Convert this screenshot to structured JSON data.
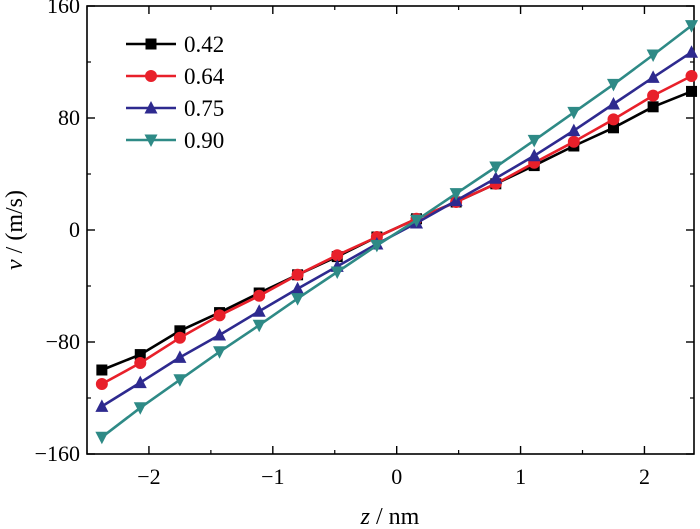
{
  "chart_data": {
    "type": "line",
    "title": "",
    "xlabel_var": "z",
    "xlabel_unit": " / nm",
    "ylabel_var": "v",
    "ylabel_unit": " / (m/s)",
    "xlim": [
      -2.5,
      2.4
    ],
    "ylim": [
      -160,
      160
    ],
    "xticks": [
      -2,
      -1,
      0,
      1,
      2
    ],
    "xtick_labels": [
      "−2",
      "−1",
      "0",
      "1",
      "2"
    ],
    "yticks": [
      -160,
      -80,
      0,
      80,
      160
    ],
    "ytick_labels": [
      "−160",
      "−80",
      "0",
      "80",
      "160"
    ],
    "legend_position": "top-left",
    "x": [
      -2.38,
      -2.07,
      -1.75,
      -1.43,
      -1.11,
      -0.8,
      -0.48,
      -0.16,
      0.16,
      0.48,
      0.8,
      1.11,
      1.43,
      1.75,
      2.07,
      2.38
    ],
    "series": [
      {
        "name": "0.42",
        "color": "#000000",
        "marker": "square",
        "values": [
          -100,
          -89,
          -72,
          -59,
          -45,
          -32,
          -19,
          -5,
          8,
          20,
          33,
          46,
          60,
          73,
          88,
          99
        ]
      },
      {
        "name": "0.64",
        "color": "#e8202a",
        "marker": "circle",
        "values": [
          -110,
          -95,
          -77,
          -61,
          -47,
          -32,
          -18,
          -5,
          8,
          20,
          33,
          48,
          63,
          79,
          96,
          110
        ]
      },
      {
        "name": "0.75",
        "color": "#2e2a8f",
        "marker": "triangle-up",
        "values": [
          -126,
          -109,
          -91,
          -75,
          -58,
          -42,
          -26,
          -10,
          5,
          21,
          37,
          53,
          71,
          90,
          109,
          127
        ]
      },
      {
        "name": "0.90",
        "color": "#2e8a86",
        "marker": "triangle-down",
        "values": [
          -148,
          -127,
          -107,
          -87,
          -68,
          -49,
          -30,
          -11,
          7,
          26,
          45,
          64,
          84,
          104,
          125,
          146
        ]
      }
    ]
  }
}
